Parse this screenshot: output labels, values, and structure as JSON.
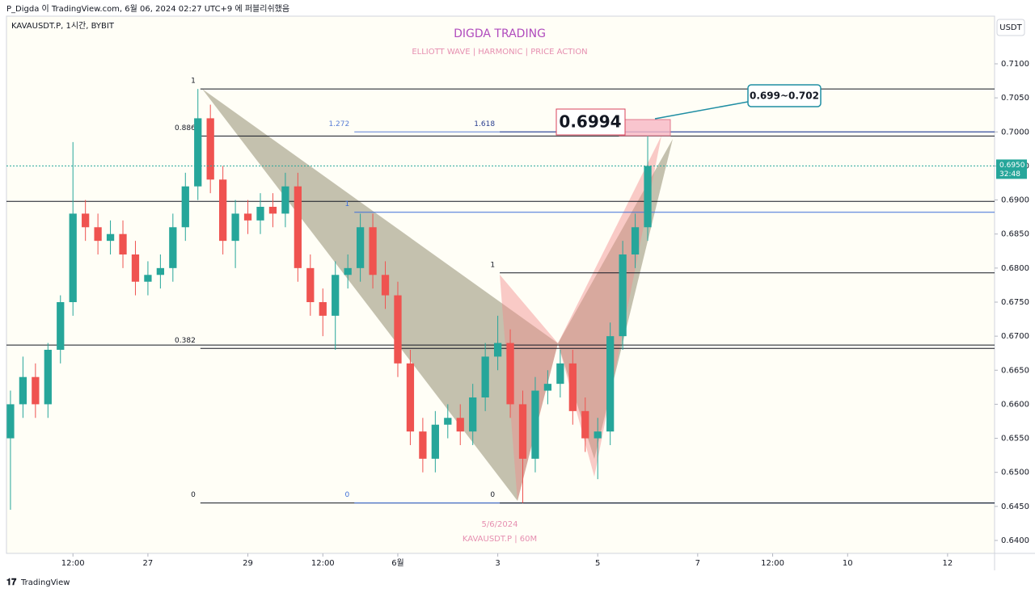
{
  "header": {
    "published": "P_Digda 이 TradingView.com, 6월 06, 2024 02:27 UTC+9 에 퍼블리쉬했음",
    "symbol": "KAVAUSDT.P, 1시간, BYBIT",
    "currency": "USDT",
    "brand": "TradingView"
  },
  "chart_data": {
    "type": "candlestick",
    "title": "DIGDA TRADING",
    "subtitle": "ELLIOTT WAVE  |  HARMONIC  |  PRICE ACTION",
    "watermark": [
      "5/6/2024",
      "KAVAUSDT.P | 60M"
    ],
    "up_color": "#26a69a",
    "down_color": "#ef5350",
    "x": [
      24.25,
      24.5,
      24.75,
      25,
      25.25,
      25.5,
      25.75,
      26,
      26.25,
      26.5,
      26.75,
      27,
      27.25,
      27.5,
      27.75,
      28,
      28.25,
      28.5,
      28.75,
      29,
      29.25,
      29.5,
      29.75,
      30,
      30.25,
      30.5,
      30.75,
      31,
      31.25,
      31.5,
      31.75,
      32,
      32.25,
      32.5,
      32.75,
      33,
      33.25,
      33.5,
      33.75,
      34,
      34.25,
      34.5,
      34.75,
      35,
      35.25,
      35.5,
      35.75,
      36,
      36.25,
      36.5,
      36.75,
      37
    ],
    "open": [
      0.655,
      0.66,
      0.664,
      0.66,
      0.668,
      0.675,
      0.688,
      0.686,
      0.684,
      0.685,
      0.682,
      0.678,
      0.679,
      0.68,
      0.686,
      0.692,
      0.702,
      0.693,
      0.684,
      0.688,
      0.687,
      0.689,
      0.688,
      0.692,
      0.68,
      0.675,
      0.673,
      0.679,
      0.68,
      0.686,
      0.679,
      0.676,
      0.666,
      0.656,
      0.652,
      0.657,
      0.658,
      0.656,
      0.661,
      0.667,
      0.669,
      0.66,
      0.652,
      0.662,
      0.663,
      0.666,
      0.659,
      0.655,
      0.656,
      0.67,
      0.682,
      0.686
    ],
    "high": [
      0.662,
      0.667,
      0.666,
      0.669,
      0.676,
      0.6985,
      0.69,
      0.688,
      0.687,
      0.687,
      0.684,
      0.681,
      0.682,
      0.688,
      0.694,
      0.7063,
      0.704,
      0.695,
      0.69,
      0.69,
      0.691,
      0.691,
      0.694,
      0.694,
      0.682,
      0.677,
      0.681,
      0.682,
      0.688,
      0.688,
      0.681,
      0.678,
      0.668,
      0.658,
      0.659,
      0.66,
      0.66,
      0.663,
      0.669,
      0.673,
      0.671,
      0.662,
      0.664,
      0.665,
      0.668,
      0.668,
      0.661,
      0.658,
      0.672,
      0.684,
      0.688,
      0.6994
    ],
    "low": [
      0.6445,
      0.658,
      0.658,
      0.658,
      0.666,
      0.673,
      0.684,
      0.682,
      0.682,
      0.68,
      0.676,
      0.676,
      0.677,
      0.678,
      0.684,
      0.69,
      0.691,
      0.682,
      0.68,
      0.685,
      0.685,
      0.686,
      0.686,
      0.678,
      0.673,
      0.67,
      0.668,
      0.677,
      0.678,
      0.677,
      0.674,
      0.664,
      0.654,
      0.65,
      0.65,
      0.655,
      0.654,
      0.654,
      0.659,
      0.665,
      0.658,
      0.6455,
      0.65,
      0.66,
      0.661,
      0.657,
      0.653,
      0.649,
      0.654,
      0.668,
      0.68,
      0.684
    ],
    "close": [
      0.66,
      0.664,
      0.66,
      0.668,
      0.675,
      0.688,
      0.686,
      0.684,
      0.685,
      0.682,
      0.678,
      0.679,
      0.68,
      0.686,
      0.692,
      0.702,
      0.693,
      0.684,
      0.688,
      0.687,
      0.689,
      0.688,
      0.692,
      0.68,
      0.675,
      0.673,
      0.679,
      0.68,
      0.686,
      0.679,
      0.676,
      0.666,
      0.656,
      0.652,
      0.657,
      0.658,
      0.656,
      0.661,
      0.667,
      0.669,
      0.66,
      0.652,
      0.662,
      0.663,
      0.666,
      0.659,
      0.655,
      0.656,
      0.67,
      0.682,
      0.686,
      0.695
    ],
    "xlim": [
      24.17,
      43.94
    ],
    "ylim": [
      0.6381,
      0.717
    ],
    "xticks": [
      {
        "value": 25.5,
        "label": "12:00"
      },
      27,
      29,
      {
        "value": 30.5,
        "label": "12:00"
      },
      {
        "value": 32,
        "label": "6월"
      },
      {
        "value": 34,
        "label": "3"
      },
      {
        "value": 36,
        "label": "5"
      },
      {
        "value": 38,
        "label": "7"
      },
      {
        "value": 39.5,
        "label": "12:00"
      },
      {
        "value": 41,
        "label": "10"
      },
      {
        "value": 43,
        "label": "12"
      }
    ],
    "yticks": [
      {
        "value": 0.64,
        "label": "0.6400"
      },
      {
        "value": 0.645,
        "label": "0.6450"
      },
      {
        "value": 0.65,
        "label": "0.6500"
      },
      {
        "value": 0.655,
        "label": "0.6550"
      },
      {
        "value": 0.66,
        "label": "0.6600"
      },
      {
        "value": 0.665,
        "label": "0.6650"
      },
      {
        "value": 0.67,
        "label": "0.6700"
      },
      {
        "value": 0.675,
        "label": "0.6750"
      },
      {
        "value": 0.68,
        "label": "0.6800"
      },
      {
        "value": 0.685,
        "label": "0.6850"
      },
      {
        "value": 0.69,
        "label": "0.6900"
      },
      {
        "value": 0.695,
        "label": "0.6950"
      },
      {
        "value": 0.7,
        "label": "0.7000"
      },
      {
        "value": 0.705,
        "label": "0.7050"
      },
      {
        "value": 0.71,
        "label": "0.7100"
      }
    ],
    "levels": [
      {
        "value": 0.7063,
        "label": "1",
        "from": 28.05,
        "color": "#131722"
      },
      {
        "value": 0.6994,
        "label": "0.886",
        "from": 28.05,
        "color": "#131722"
      },
      {
        "value": 0.7,
        "label": "1.272",
        "from": 31.13,
        "color": "#5b7fd6"
      },
      {
        "value": 0.7,
        "label": "1.618",
        "from": 34.04,
        "color": "#2a3f8f"
      },
      {
        "value": 0.6898,
        "from": 24.17,
        "color": "#131722"
      },
      {
        "value": 0.6882,
        "label": "1",
        "from": 31.13,
        "color": "#3f6fd8"
      },
      {
        "value": 0.6793,
        "label": "1",
        "from": 34.04,
        "color": "#131722"
      },
      {
        "value": 0.6687,
        "from": 24.17,
        "color": "#131722"
      },
      {
        "value": 0.6682,
        "label": "0.382",
        "from": 28.05,
        "color": "#131722"
      },
      {
        "value": 0.6455,
        "label": "0",
        "from": 28.05,
        "color": "#131722"
      },
      {
        "value": 0.6455,
        "label": "0",
        "from": 31.13,
        "color": "#3f6fd8"
      },
      {
        "value": 0.6455,
        "label": "0",
        "from": 34.04,
        "color": "#131722"
      }
    ],
    "last_price": {
      "value": 0.695,
      "label": "0.6950",
      "countdown": "32:48"
    },
    "annotations": {
      "target": "0.6994",
      "zone": "0.699~0.702"
    }
  }
}
